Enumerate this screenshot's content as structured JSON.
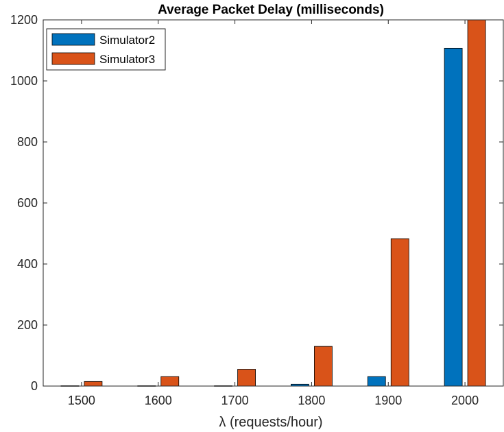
{
  "chart_data": {
    "type": "bar",
    "title": "Average Packet Delay (milliseconds)",
    "xlabel": "λ (requests/hour)",
    "ylabel": "",
    "categories": [
      "1500",
      "1600",
      "1700",
      "1800",
      "1900",
      "2000"
    ],
    "series": [
      {
        "name": "Simulator2",
        "color": "#0072BD",
        "values": [
          1,
          1,
          1,
          6,
          31,
          1107
        ]
      },
      {
        "name": "Simulator3",
        "color": "#D95319",
        "values": [
          15,
          31,
          55,
          130,
          483,
          1200
        ]
      }
    ],
    "ylim": [
      0,
      1200
    ],
    "yticks": [
      0,
      200,
      400,
      600,
      800,
      1000,
      1200
    ],
    "grid": false,
    "legend_position": "top-left"
  }
}
